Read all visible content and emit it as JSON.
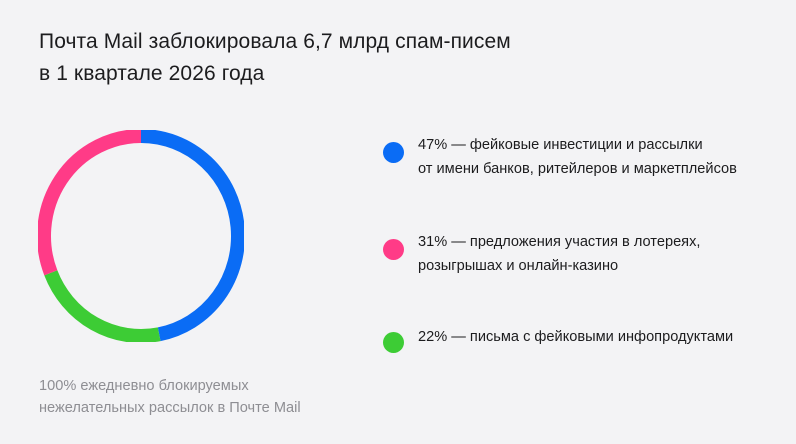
{
  "title": {
    "line1": "Почта Mail заблокировала 6,7 млрд спам-писем",
    "line2": "в 1 квартале 2026 года"
  },
  "chart_data": {
    "type": "pie",
    "style": "donut",
    "title": "Почта Mail заблокировала 6,7 млрд спам-писем в 1 квартале 2026 года",
    "series": [
      {
        "name": "фейковые инвестиции и рассылки от имени банков, ритейлеров и маркетплейсов",
        "value": 47,
        "color": "#0a6cf5",
        "label_line1": "47% — фейковые инвестиции и рассылки",
        "label_line2": "от имени банков, ритейлеров и маркетплейсов"
      },
      {
        "name": "письма с фейковыми инфопродуктами",
        "value": 22,
        "color": "#3dcc35",
        "label_line1": "22% — письма с фейковыми инфопродуктами",
        "label_line2": ""
      },
      {
        "name": "предложения участия в лотереях, розыгрышах и онлайн-казино",
        "value": 31,
        "color": "#ff3b87",
        "label_line1": "31% — предложения участия в лотереях,",
        "label_line2": "розыгрышах и онлайн-казино"
      }
    ],
    "legend_order": [
      0,
      2,
      1
    ],
    "legend_placement": "right",
    "total_label": "100% ежедневно блокируемых нежелательных рассылок в Почте Mail"
  },
  "footnote": {
    "line1": "100% ежедневно блокируемых",
    "line2": "нежелательных рассылок в Почте Mail"
  }
}
